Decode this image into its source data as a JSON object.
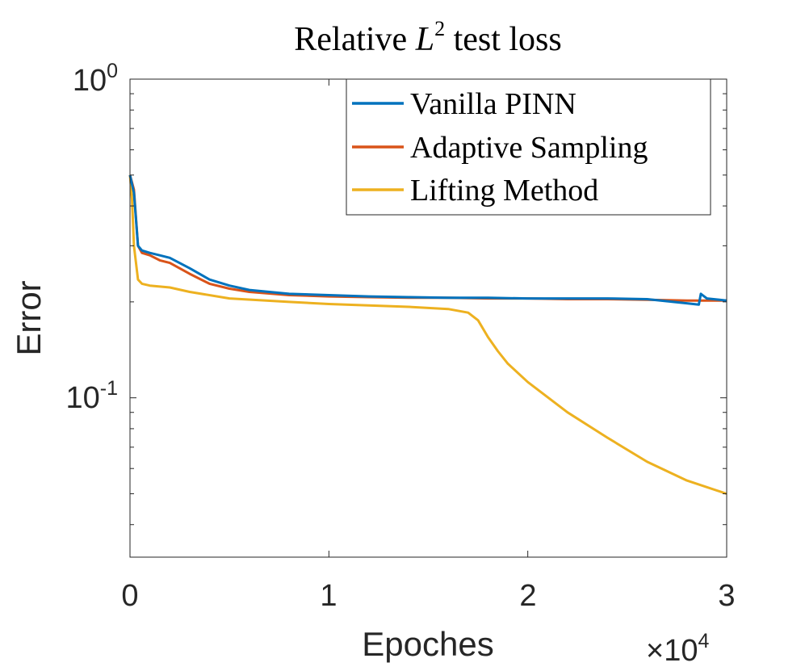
{
  "chart_data": {
    "type": "line",
    "title_prefix": "Relative ",
    "title_var": "L",
    "title_sup": "2",
    "title_suffix": " test loss",
    "xlabel": "Epoches",
    "ylabel": "Error",
    "x_multiplier": "×10",
    "x_multiplier_exp": "4",
    "xlim": [
      0,
      3
    ],
    "ylim_log10": [
      -1.5,
      0
    ],
    "x_ticks": [
      {
        "value": 0,
        "label": "0"
      },
      {
        "value": 1,
        "label": "1"
      },
      {
        "value": 2,
        "label": "2"
      },
      {
        "value": 3,
        "label": "3"
      }
    ],
    "y_ticks": [
      {
        "value": 1,
        "base": "10",
        "exp": "0"
      },
      {
        "value": 0.1,
        "base": "10",
        "exp": "-1"
      }
    ],
    "legend_position": "top-right",
    "series": [
      {
        "name": "Vanilla PINN",
        "color": "#0072BD",
        "x": [
          0,
          0.02,
          0.04,
          0.06,
          0.1,
          0.15,
          0.2,
          0.3,
          0.4,
          0.5,
          0.6,
          0.8,
          1.0,
          1.2,
          1.4,
          1.6,
          1.8,
          2.0,
          2.2,
          2.4,
          2.6,
          2.8,
          2.86,
          2.87,
          2.9,
          3.0
        ],
        "y": [
          0.5,
          0.44,
          0.3,
          0.29,
          0.285,
          0.28,
          0.275,
          0.255,
          0.235,
          0.225,
          0.218,
          0.212,
          0.21,
          0.208,
          0.207,
          0.206,
          0.206,
          0.205,
          0.205,
          0.205,
          0.204,
          0.198,
          0.196,
          0.212,
          0.205,
          0.202
        ]
      },
      {
        "name": "Adaptive Sampling",
        "color": "#D95319",
        "x": [
          0,
          0.02,
          0.04,
          0.06,
          0.1,
          0.15,
          0.2,
          0.3,
          0.4,
          0.5,
          0.6,
          0.8,
          1.0,
          1.2,
          1.4,
          1.6,
          1.8,
          2.0,
          2.2,
          2.4,
          2.6,
          2.8,
          3.0
        ],
        "y": [
          0.5,
          0.45,
          0.3,
          0.285,
          0.28,
          0.27,
          0.265,
          0.245,
          0.228,
          0.22,
          0.215,
          0.21,
          0.208,
          0.207,
          0.206,
          0.206,
          0.205,
          0.205,
          0.204,
          0.204,
          0.203,
          0.202,
          0.202
        ]
      },
      {
        "name": "Lifting Method",
        "color": "#EDB120",
        "x": [
          0,
          0.01,
          0.02,
          0.04,
          0.06,
          0.1,
          0.2,
          0.3,
          0.5,
          0.8,
          1.0,
          1.2,
          1.4,
          1.6,
          1.7,
          1.75,
          1.8,
          1.85,
          1.9,
          2.0,
          2.2,
          2.4,
          2.6,
          2.8,
          3.0
        ],
        "y": [
          0.5,
          0.42,
          0.3,
          0.235,
          0.228,
          0.225,
          0.222,
          0.215,
          0.205,
          0.2,
          0.197,
          0.195,
          0.193,
          0.19,
          0.185,
          0.175,
          0.155,
          0.14,
          0.128,
          0.112,
          0.09,
          0.075,
          0.063,
          0.055,
          0.05
        ]
      }
    ]
  }
}
